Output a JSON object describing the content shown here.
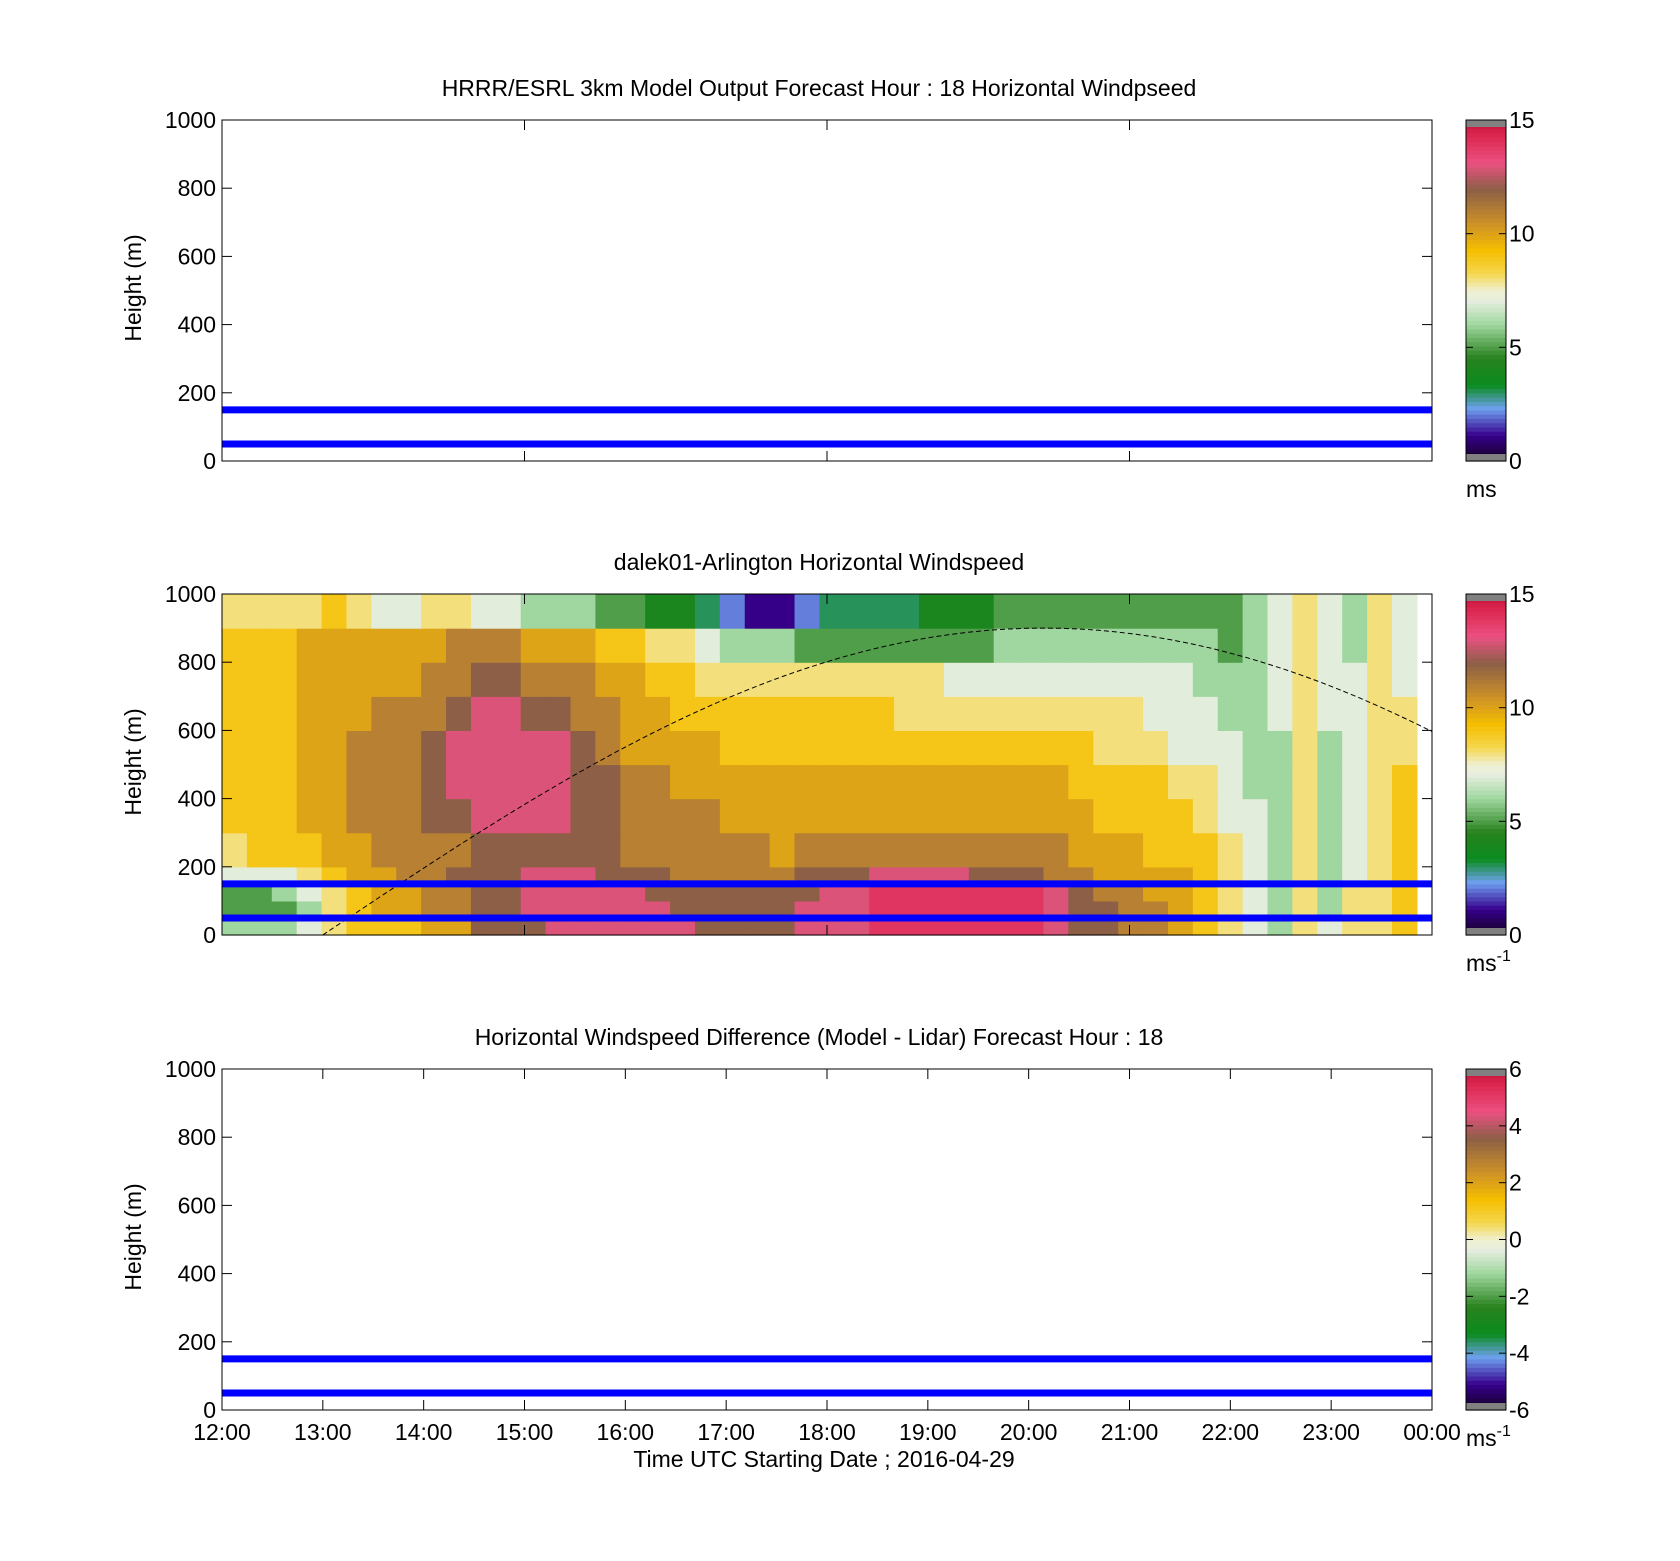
{
  "chart_data": [
    {
      "type": "heatmap",
      "title": "HRRR/ESRL 3km Model Output   Forecast Hour : 18 Horizontal Windpseed",
      "ylabel": "Height (m)",
      "xlabel": "",
      "ylim": [
        0,
        1000
      ],
      "yticks": [
        0,
        200,
        400,
        600,
        800,
        1000
      ],
      "xlim_hours": [
        12,
        24
      ],
      "xticks_hours": [
        12,
        15,
        18,
        21,
        24
      ],
      "colorbar": {
        "min": 0,
        "max": 15,
        "ticks": [
          0,
          5,
          10,
          15
        ],
        "unit": "ms",
        "unit_sup": ""
      },
      "reference_lines_m": [
        50,
        150
      ],
      "has_field": false
    },
    {
      "type": "heatmap",
      "title": "dalek01-Arlington  Horizontal Windspeed",
      "ylabel": "Height (m)",
      "xlabel": "",
      "ylim": [
        0,
        1000
      ],
      "yticks": [
        0,
        200,
        400,
        600,
        800,
        1000
      ],
      "xlim_hours": [
        12,
        24
      ],
      "xticks_hours": [
        12,
        15,
        18,
        21,
        24
      ],
      "colorbar": {
        "min": 0,
        "max": 15,
        "ticks": [
          0,
          5,
          10,
          15
        ],
        "unit": "ms",
        "unit_sup": "-1"
      },
      "reference_lines_m": [
        50,
        150
      ],
      "has_field": true,
      "field_time_range_hours": [
        12,
        23.85
      ],
      "field_columns": 48,
      "field_height_bins_m": [
        0,
        50,
        100,
        150,
        200,
        300,
        400,
        500,
        600,
        700,
        800,
        900,
        1000
      ],
      "windspeed_ms_by_height_bin": [
        [
          6,
          6,
          6,
          7,
          8,
          9,
          9,
          9,
          10,
          10,
          12,
          12,
          12,
          13,
          13,
          13,
          13,
          13,
          13,
          12,
          12,
          12,
          12,
          13,
          13,
          13,
          14,
          14,
          14,
          14,
          14,
          14,
          14,
          13,
          12,
          12,
          11,
          11,
          10,
          9,
          8,
          7,
          6,
          8,
          7,
          8,
          8,
          9
        ],
        [
          5,
          5,
          5,
          6,
          8,
          9,
          10,
          10,
          11,
          11,
          12,
          12,
          13,
          13,
          13,
          13,
          13,
          13,
          12,
          12,
          12,
          12,
          12,
          13,
          13,
          13,
          14,
          14,
          14,
          14,
          14,
          14,
          14,
          13,
          12,
          12,
          11,
          11,
          10,
          9,
          8,
          7,
          6,
          8,
          6,
          8,
          8,
          9
        ],
        [
          5,
          5,
          6,
          7,
          8,
          9,
          10,
          10,
          11,
          11,
          12,
          12,
          13,
          13,
          13,
          13,
          13,
          12,
          12,
          12,
          12,
          12,
          12,
          12,
          13,
          13,
          14,
          14,
          14,
          14,
          14,
          14,
          14,
          13,
          12,
          11,
          11,
          10,
          10,
          9,
          8,
          7,
          6,
          8,
          6,
          8,
          8,
          9
        ],
        [
          7,
          7,
          7,
          8,
          9,
          10,
          10,
          11,
          11,
          12,
          12,
          12,
          13,
          13,
          13,
          12,
          12,
          12,
          11,
          11,
          11,
          11,
          11,
          12,
          12,
          12,
          13,
          13,
          13,
          13,
          12,
          12,
          12,
          11,
          11,
          10,
          10,
          10,
          10,
          9,
          8,
          7,
          6,
          8,
          6,
          7,
          8,
          9
        ],
        [
          8,
          9,
          9,
          9,
          10,
          10,
          11,
          11,
          11,
          11,
          12,
          12,
          12,
          12,
          12,
          12,
          11,
          11,
          11,
          11,
          11,
          11,
          10,
          11,
          11,
          11,
          11,
          11,
          11,
          11,
          11,
          11,
          11,
          11,
          10,
          10,
          10,
          9,
          9,
          9,
          8,
          7,
          6,
          8,
          6,
          7,
          8,
          9
        ],
        [
          9,
          9,
          9,
          10,
          10,
          11,
          11,
          11,
          12,
          12,
          13,
          13,
          13,
          13,
          12,
          12,
          11,
          11,
          11,
          11,
          10,
          10,
          10,
          10,
          10,
          10,
          10,
          10,
          10,
          10,
          10,
          10,
          10,
          10,
          10,
          9,
          9,
          9,
          9,
          8,
          7,
          7,
          6,
          8,
          6,
          7,
          8,
          9
        ],
        [
          9,
          9,
          9,
          10,
          10,
          11,
          11,
          11,
          12,
          13,
          13,
          13,
          13,
          13,
          12,
          12,
          11,
          11,
          10,
          10,
          10,
          10,
          10,
          10,
          10,
          10,
          10,
          10,
          10,
          10,
          10,
          10,
          10,
          10,
          9,
          9,
          9,
          9,
          8,
          8,
          7,
          6,
          6,
          8,
          6,
          7,
          8,
          9
        ],
        [
          9,
          9,
          9,
          10,
          10,
          11,
          11,
          11,
          12,
          13,
          13,
          13,
          13,
          13,
          12,
          11,
          10,
          10,
          10,
          10,
          9,
          9,
          9,
          9,
          9,
          9,
          9,
          9,
          9,
          9,
          9,
          9,
          9,
          9,
          9,
          8,
          8,
          8,
          7,
          7,
          7,
          6,
          6,
          8,
          6,
          7,
          8,
          8
        ],
        [
          9,
          9,
          9,
          10,
          10,
          10,
          11,
          11,
          11,
          12,
          13,
          13,
          12,
          12,
          11,
          11,
          10,
          10,
          9,
          9,
          9,
          9,
          9,
          9,
          9,
          9,
          9,
          8,
          8,
          8,
          8,
          8,
          8,
          8,
          8,
          8,
          8,
          7,
          7,
          7,
          6,
          6,
          7,
          8,
          7,
          7,
          8,
          8
        ],
        [
          9,
          9,
          9,
          10,
          10,
          10,
          10,
          10,
          11,
          11,
          12,
          12,
          11,
          11,
          11,
          10,
          10,
          9,
          9,
          8,
          8,
          8,
          8,
          8,
          8,
          8,
          8,
          8,
          8,
          7,
          7,
          7,
          7,
          7,
          7,
          7,
          7,
          7,
          7,
          6,
          6,
          6,
          7,
          8,
          7,
          7,
          8,
          7
        ],
        [
          9,
          9,
          9,
          10,
          10,
          10,
          10,
          10,
          10,
          11,
          11,
          11,
          10,
          10,
          10,
          9,
          9,
          8,
          8,
          7,
          6,
          6,
          6,
          5,
          5,
          5,
          5,
          5,
          5,
          5,
          5,
          6,
          6,
          6,
          6,
          6,
          6,
          6,
          6,
          6,
          5,
          6,
          7,
          8,
          7,
          6,
          8,
          7
        ],
        [
          8,
          8,
          8,
          8,
          9,
          8,
          7,
          7,
          8,
          8,
          7,
          7,
          6,
          6,
          6,
          5,
          5,
          4,
          4,
          3,
          2,
          1,
          1,
          2,
          3,
          3,
          3,
          3,
          4,
          4,
          4,
          5,
          5,
          5,
          5,
          5,
          5,
          5,
          5,
          5,
          5,
          6,
          7,
          8,
          7,
          6,
          8,
          7
        ]
      ]
    },
    {
      "type": "heatmap",
      "title": "Horizontal Windspeed Difference (Model - Lidar) Forecast Hour : 18",
      "ylabel": "Height (m)",
      "xlabel": "Time UTC  Starting Date ; 2016-04-29",
      "xtick_labels": [
        "12:00",
        "13:00",
        "14:00",
        "15:00",
        "16:00",
        "17:00",
        "18:00",
        "19:00",
        "20:00",
        "21:00",
        "22:00",
        "23:00",
        "00:00"
      ],
      "ylim": [
        0,
        1000
      ],
      "yticks": [
        0,
        200,
        400,
        600,
        800,
        1000
      ],
      "xlim_hours": [
        12,
        24
      ],
      "xticks_hours": [
        12,
        13,
        14,
        15,
        16,
        17,
        18,
        19,
        20,
        21,
        22,
        23,
        24
      ],
      "colorbar": {
        "min": -6,
        "max": 6,
        "ticks": [
          -6,
          -4,
          -2,
          0,
          2,
          4,
          6
        ],
        "unit": "ms",
        "unit_sup": "-1"
      },
      "reference_lines_m": [
        50,
        150
      ],
      "has_field": false
    }
  ]
}
